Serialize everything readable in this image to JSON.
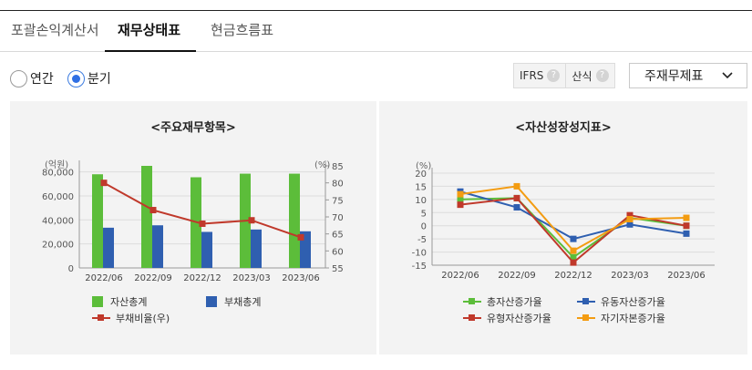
{
  "tabs": [
    {
      "label": "포괄손익계산서",
      "active": false
    },
    {
      "label": "재무상태표",
      "active": true
    },
    {
      "label": "현금흐름표",
      "active": false
    }
  ],
  "period": {
    "options": [
      {
        "label": "연간",
        "selected": false
      },
      {
        "label": "분기",
        "selected": true
      }
    ]
  },
  "options_box": {
    "ifrs_label": "IFRS",
    "formula_label": "산식",
    "help_glyph": "?"
  },
  "statement_select": {
    "value": "주재무제표",
    "icon": "chevron-down-icon"
  },
  "left_panel": {
    "title": "<주요재무항목>"
  },
  "right_panel": {
    "title": "<자산성장성지표>"
  },
  "colors": {
    "asset_bar": "#5cbd3a",
    "liability_bar": "#2f5fb0",
    "debt_ratio_line": "#c0392b",
    "total_asset_growth": "#5cbd3a",
    "current_asset_growth": "#2f5fb0",
    "tangible_asset_growth": "#c0392b",
    "equity_growth": "#f39c12"
  },
  "chart_data": [
    {
      "type": "bar",
      "categories": [
        "2022/06",
        "2022/09",
        "2022/12",
        "2023/03",
        "2023/06"
      ],
      "series": [
        {
          "name": "자산총계",
          "values": [
            78000,
            85000,
            75500,
            78500,
            78500
          ],
          "axis": "left"
        },
        {
          "name": "부채총계",
          "values": [
            33500,
            35500,
            30000,
            32000,
            30500
          ],
          "axis": "left"
        },
        {
          "name": "부채비율(우)",
          "values": [
            80,
            72,
            68,
            69,
            64
          ],
          "axis": "right",
          "render": "line"
        }
      ],
      "y_left": {
        "unit_label": "(억원)",
        "range": [
          0,
          85000
        ],
        "ticks": [
          "0",
          "20,000",
          "40,000",
          "60,000",
          "80,000"
        ],
        "tick_values": [
          0,
          20000,
          40000,
          60000,
          80000
        ]
      },
      "y_right": {
        "unit_label": "(%)",
        "range": [
          55,
          85
        ],
        "ticks": [
          "55",
          "60",
          "65",
          "70",
          "75",
          "80",
          "85"
        ],
        "tick_values": [
          55,
          60,
          65,
          70,
          75,
          80,
          85
        ]
      },
      "grid": true,
      "legend_position": "bottom"
    },
    {
      "type": "line",
      "categories": [
        "2022/06",
        "2022/09",
        "2022/12",
        "2023/03",
        "2023/06"
      ],
      "series": [
        {
          "name": "총자산증가율",
          "values": [
            10,
            10.5,
            -12,
            3,
            0
          ]
        },
        {
          "name": "유동자산증가율",
          "values": [
            13,
            7,
            -5,
            0.5,
            -3
          ]
        },
        {
          "name": "유형자산증가율",
          "values": [
            8,
            10.5,
            -14,
            4,
            0
          ]
        },
        {
          "name": "자기자본증가율",
          "values": [
            12,
            15,
            -9.5,
            2.5,
            3
          ]
        }
      ],
      "y": {
        "unit_label": "(%)",
        "range": [
          -15,
          20
        ],
        "ticks": [
          "-15",
          "-10",
          "-5",
          "0",
          "5",
          "10",
          "15",
          "20"
        ],
        "tick_values": [
          -15,
          -10,
          -5,
          0,
          5,
          10,
          15,
          20
        ]
      },
      "grid": true,
      "legend_position": "bottom"
    }
  ]
}
